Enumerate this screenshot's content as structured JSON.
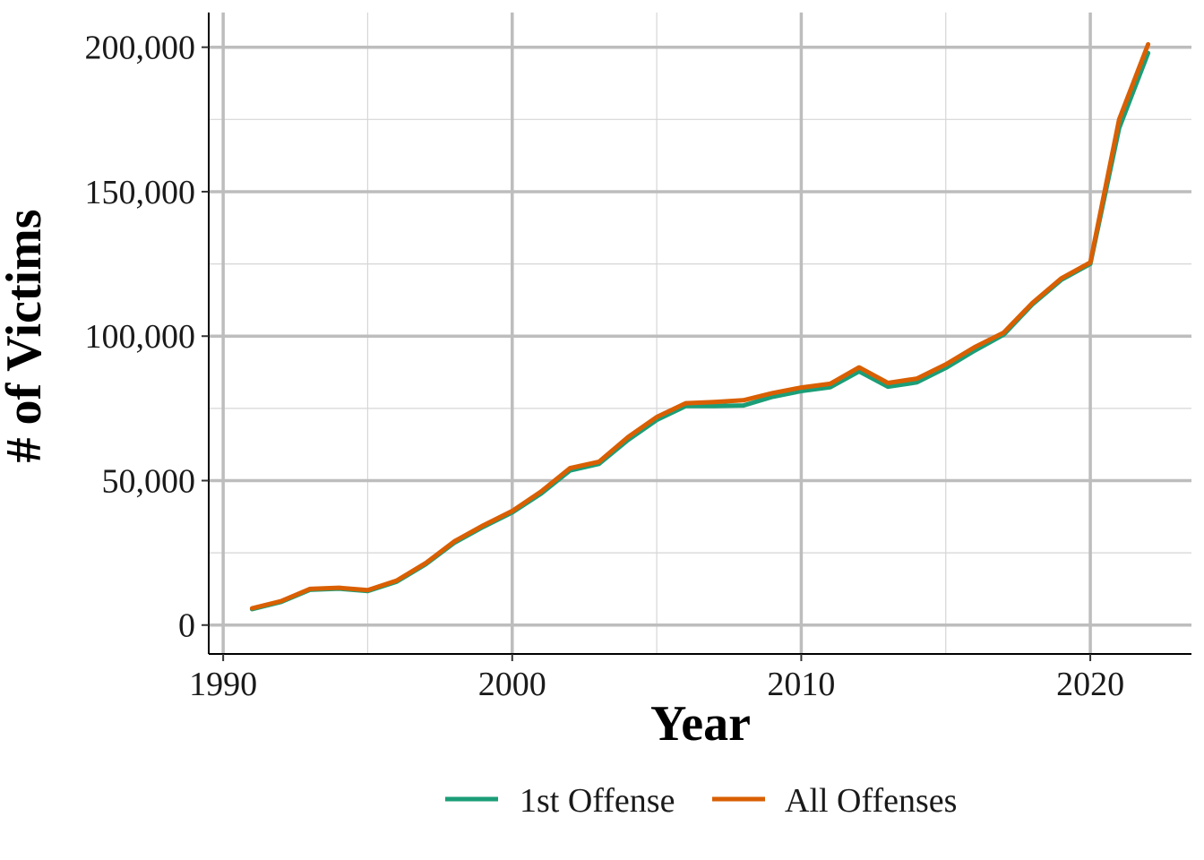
{
  "chart_data": {
    "type": "line",
    "xlabel": "Year",
    "ylabel": "# of Victims",
    "xlim": [
      1989.5,
      2023.5
    ],
    "ylim": [
      -10000,
      212000
    ],
    "x_ticks": [
      1990,
      2000,
      2010,
      2020
    ],
    "x_minor_ticks": [
      1995,
      2005,
      2015
    ],
    "y_ticks": [
      0,
      50000,
      100000,
      150000,
      200000
    ],
    "y_minor_ticks": [
      25000,
      75000,
      125000,
      175000
    ],
    "x_tick_labels": [
      "1990",
      "2000",
      "2010",
      "2020"
    ],
    "y_tick_labels": [
      "0",
      "50,000",
      "100,000",
      "150,000",
      "200,000"
    ],
    "grid": true,
    "legend_position": "bottom",
    "x": [
      1991,
      1992,
      1993,
      1994,
      1995,
      1996,
      1997,
      1998,
      1999,
      2000,
      2001,
      2002,
      2003,
      2004,
      2005,
      2006,
      2007,
      2008,
      2009,
      2010,
      2011,
      2012,
      2013,
      2014,
      2015,
      2016,
      2017,
      2018,
      2019,
      2020,
      2021,
      2022
    ],
    "series": [
      {
        "name": "1st Offense",
        "color": "#1b9e77",
        "values": [
          5500,
          8000,
          12200,
          12600,
          11800,
          15000,
          21000,
          28500,
          34000,
          39000,
          45500,
          53500,
          55800,
          64000,
          71000,
          75800,
          75800,
          76000,
          79000,
          81000,
          82300,
          87800,
          82500,
          84000,
          89000,
          95000,
          100500,
          111000,
          119500,
          125000,
          172000,
          198000
        ]
      },
      {
        "name": "All Offenses",
        "color": "#d95f02",
        "values": [
          5800,
          8300,
          12500,
          12900,
          12100,
          15400,
          21400,
          29000,
          34500,
          39500,
          46200,
          54300,
          56500,
          65000,
          72000,
          76800,
          77200,
          77800,
          80300,
          82200,
          83500,
          89200,
          83800,
          85300,
          90200,
          96200,
          101200,
          111500,
          120000,
          125500,
          175000,
          201000
        ]
      }
    ]
  }
}
